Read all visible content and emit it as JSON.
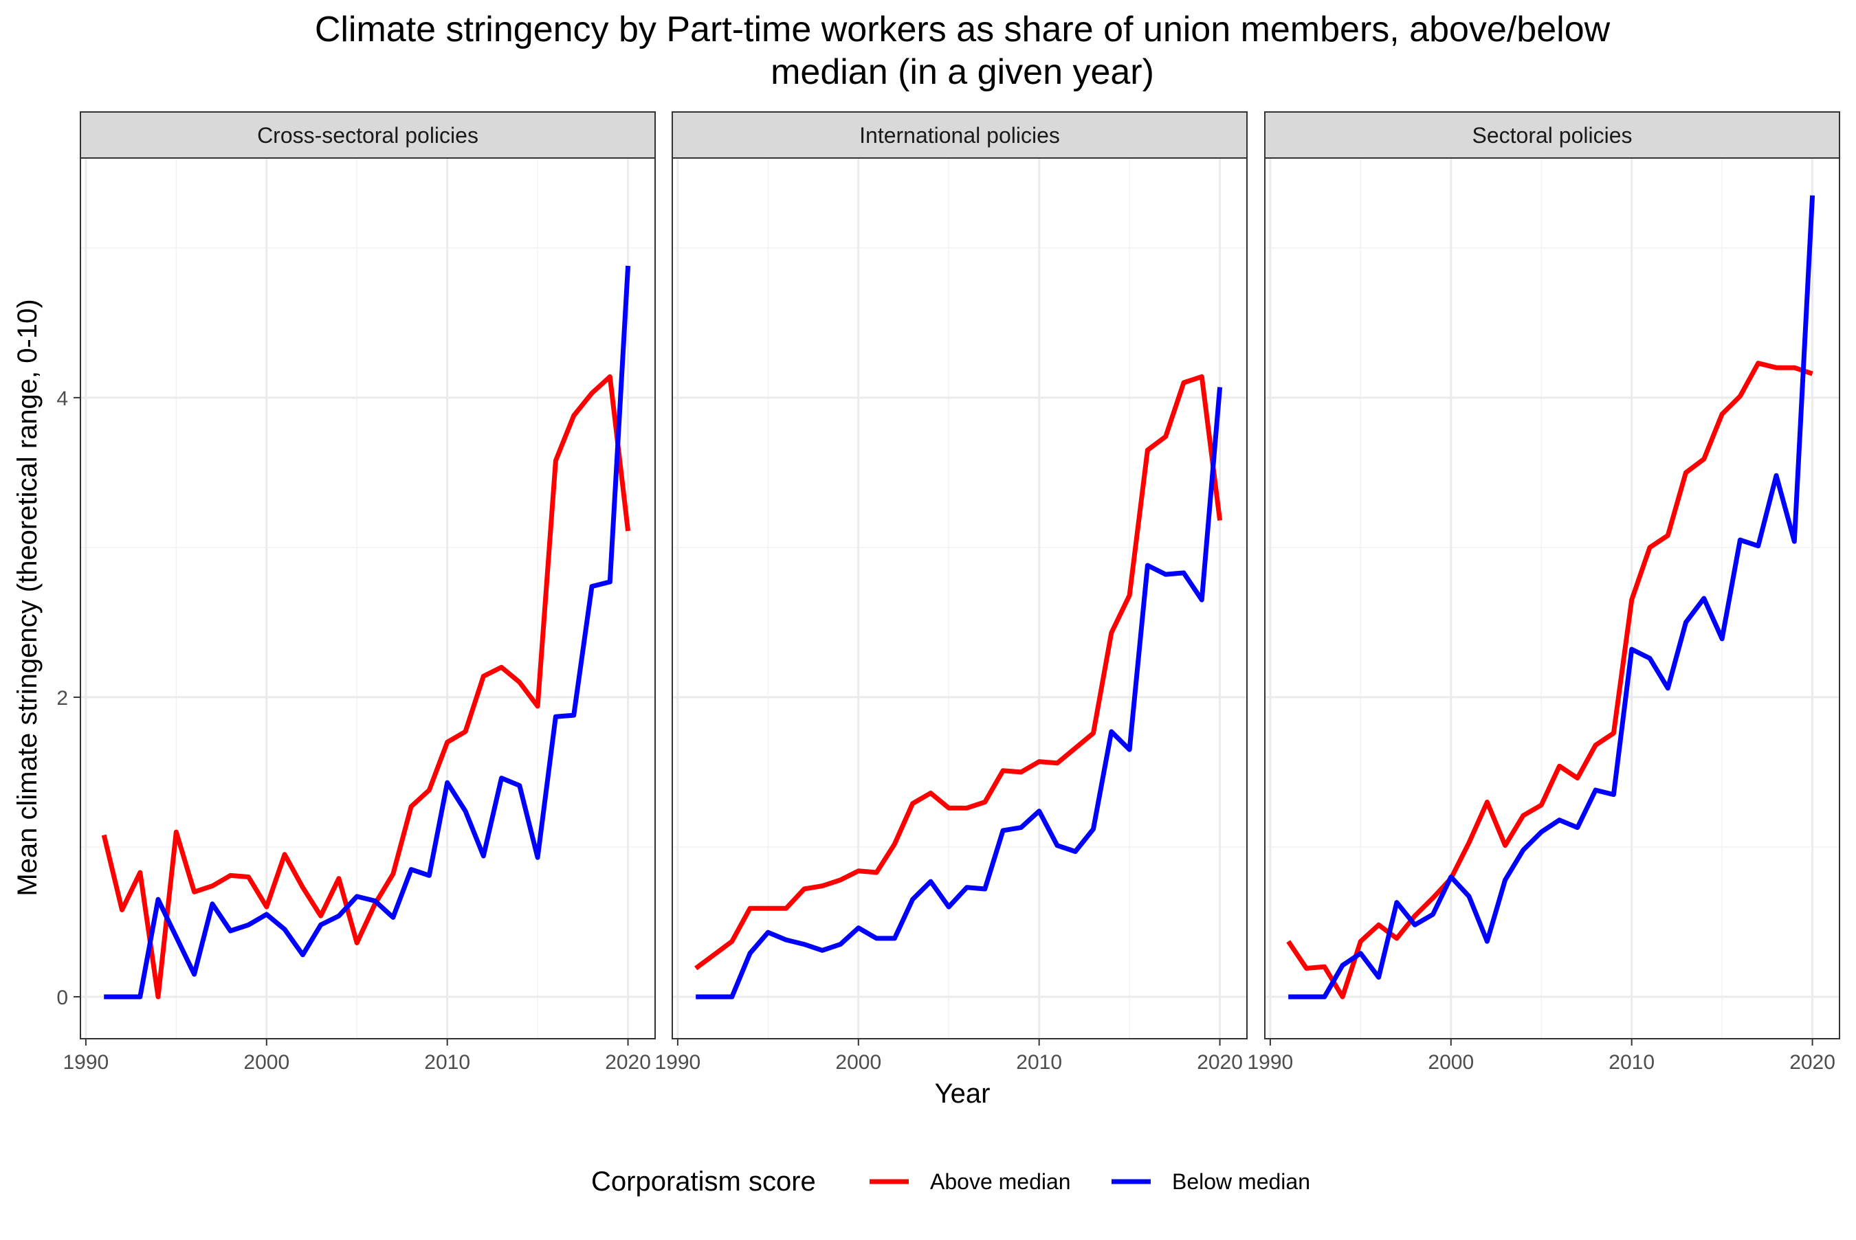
{
  "chart_data": {
    "type": "line",
    "title": "Climate stringency by Part-time workers as share of union members, above/below median (in a given year)",
    "title_lines": [
      "Climate stringency by Part-time workers as share of union members, above/below",
      "median (in a given year)"
    ],
    "xlabel": "Year",
    "ylabel": "Mean climate stringency (theoretical range, 0-10)",
    "xlim": [
      1989.7,
      2021.5
    ],
    "ylim": [
      -0.28,
      5.6
    ],
    "xticks": [
      1990,
      2000,
      2010,
      2020
    ],
    "xtick_labels": [
      "1990",
      "2000",
      "2010",
      "2020"
    ],
    "yticks": [
      0,
      2,
      4
    ],
    "ytick_labels": [
      "0",
      "2",
      "4"
    ],
    "grid": true,
    "legend": {
      "title": "Corporatism score",
      "position": "bottom",
      "entries": [
        "Above median",
        "Below median"
      ]
    },
    "colors": {
      "above": "#ff0000",
      "below": "#0000ff"
    },
    "x": [
      1991,
      1992,
      1993,
      1994,
      1995,
      1996,
      1997,
      1998,
      1999,
      2000,
      2001,
      2002,
      2003,
      2004,
      2005,
      2006,
      2007,
      2008,
      2009,
      2010,
      2011,
      2012,
      2013,
      2014,
      2015,
      2016,
      2017,
      2018,
      2019,
      2020
    ],
    "panels": [
      {
        "label": "Cross-sectoral policies",
        "series": [
          {
            "name": "Above median",
            "color": "#ff0000",
            "values": [
              1.08,
              0.58,
              0.83,
              0.0,
              1.1,
              0.7,
              0.74,
              0.81,
              0.8,
              0.6,
              0.95,
              0.73,
              0.54,
              0.79,
              0.36,
              0.62,
              0.82,
              1.27,
              1.38,
              1.7,
              1.77,
              2.14,
              2.2,
              2.1,
              1.94,
              3.58,
              3.88,
              4.03,
              4.14,
              3.11
            ]
          },
          {
            "name": "Below median",
            "color": "#0000ff",
            "values": [
              0.0,
              0.0,
              0.0,
              0.65,
              0.4,
              0.15,
              0.62,
              0.44,
              0.48,
              0.55,
              0.45,
              0.28,
              0.48,
              0.54,
              0.67,
              0.64,
              0.53,
              0.85,
              0.81,
              1.43,
              1.24,
              0.94,
              1.46,
              1.41,
              0.93,
              1.87,
              1.88,
              2.74,
              2.77,
              4.88
            ]
          }
        ]
      },
      {
        "label": "International policies",
        "series": [
          {
            "name": "Above median",
            "color": "#ff0000",
            "values": [
              0.19,
              0.28,
              0.37,
              0.59,
              0.59,
              0.59,
              0.72,
              0.74,
              0.78,
              0.84,
              0.83,
              1.02,
              1.29,
              1.36,
              1.26,
              1.26,
              1.3,
              1.51,
              1.5,
              1.57,
              1.56,
              1.66,
              1.76,
              2.43,
              2.68,
              3.65,
              3.74,
              4.1,
              4.14,
              3.18
            ]
          },
          {
            "name": "Below median",
            "color": "#0000ff",
            "values": [
              0.0,
              0.0,
              0.0,
              0.29,
              0.43,
              0.38,
              0.35,
              0.31,
              0.35,
              0.46,
              0.39,
              0.39,
              0.65,
              0.77,
              0.6,
              0.73,
              0.72,
              1.11,
              1.13,
              1.24,
              1.01,
              0.97,
              1.12,
              1.77,
              1.65,
              2.88,
              2.82,
              2.83,
              2.65,
              4.07
            ]
          }
        ]
      },
      {
        "label": "Sectoral policies",
        "series": [
          {
            "name": "Above median",
            "color": "#ff0000",
            "values": [
              0.37,
              0.19,
              0.2,
              0.0,
              0.37,
              0.48,
              0.39,
              0.54,
              0.66,
              0.79,
              1.03,
              1.3,
              1.01,
              1.21,
              1.28,
              1.54,
              1.46,
              1.68,
              1.76,
              2.65,
              3.0,
              3.08,
              3.5,
              3.59,
              3.89,
              4.01,
              4.23,
              4.2,
              4.2,
              4.16
            ]
          },
          {
            "name": "Below median",
            "color": "#0000ff",
            "values": [
              0.0,
              0.0,
              0.0,
              0.21,
              0.29,
              0.13,
              0.63,
              0.48,
              0.55,
              0.8,
              0.67,
              0.37,
              0.78,
              0.98,
              1.1,
              1.18,
              1.13,
              1.38,
              1.35,
              2.32,
              2.26,
              2.06,
              2.5,
              2.66,
              2.39,
              3.05,
              3.01,
              3.48,
              3.04,
              5.35
            ]
          }
        ]
      }
    ]
  }
}
